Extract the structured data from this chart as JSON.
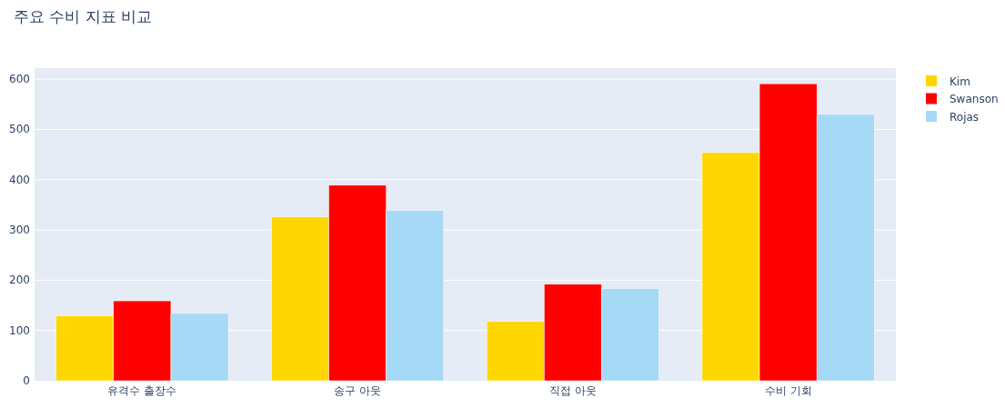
{
  "chart_data": {
    "type": "bar",
    "title": "주요 수비 지표 비교",
    "categories": [
      "유격수 출장수",
      "송구 아웃",
      "직접 아웃",
      "수비 기회"
    ],
    "series": [
      {
        "name": "Kim",
        "color": "#ffd700",
        "values": [
          129,
          326,
          118,
          454
        ]
      },
      {
        "name": "Swanson",
        "color": "#ff0000",
        "values": [
          159,
          389,
          192,
          591
        ]
      },
      {
        "name": "Rojas",
        "color": "#a6d9f5",
        "values": [
          134,
          339,
          183,
          530
        ]
      }
    ],
    "ylim": [
      0,
      622
    ],
    "yticks": [
      0,
      100,
      200,
      300,
      400,
      500,
      600
    ],
    "grid": "y",
    "legend": "top right"
  }
}
